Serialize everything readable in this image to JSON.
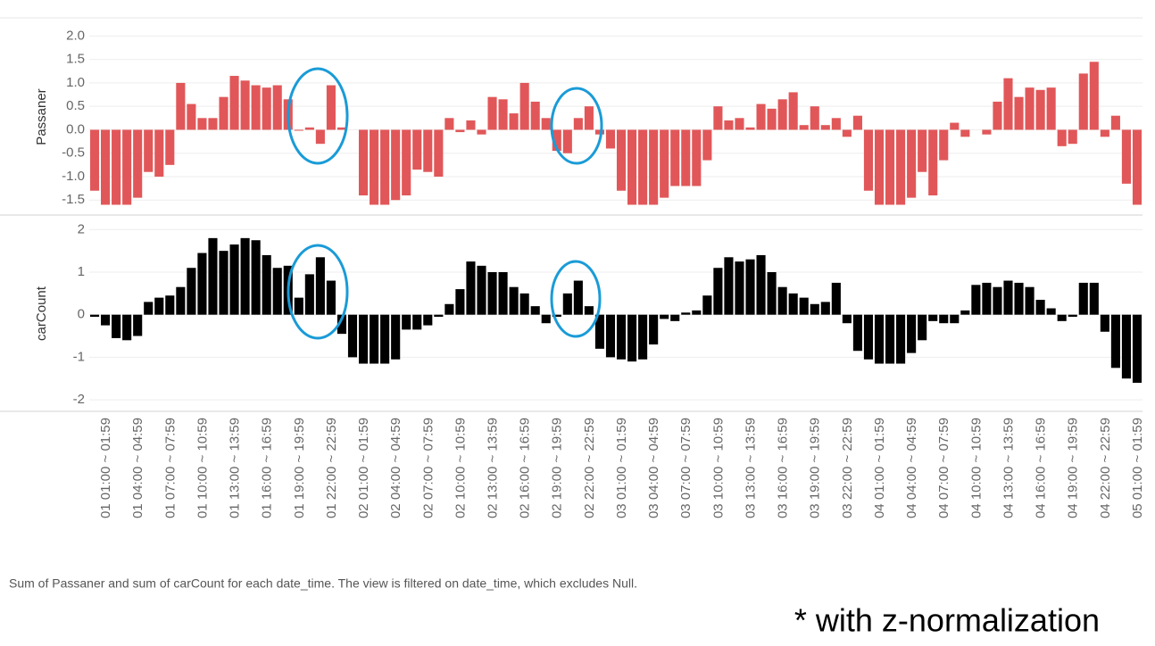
{
  "chart_data": {
    "type": "bar",
    "categories": [
      null,
      "01 01:00 ~ 01:59",
      null,
      null,
      "01 04:00 ~ 04:59",
      null,
      null,
      "01 07:00 ~ 07:59",
      null,
      null,
      "01 10:00 ~ 10:59",
      null,
      null,
      "01 13:00 ~ 13:59",
      null,
      null,
      "01 16:00 ~ 16:59",
      null,
      null,
      "01 19:00 ~ 19:59",
      null,
      null,
      "01 22:00 ~ 22:59",
      null,
      null,
      "02 01:00 ~ 01:59",
      null,
      null,
      "02 04:00 ~ 04:59",
      null,
      null,
      "02 07:00 ~ 07:59",
      null,
      null,
      "02 10:00 ~ 10:59",
      null,
      null,
      "02 13:00 ~ 13:59",
      null,
      null,
      "02 16:00 ~ 16:59",
      null,
      null,
      "02 19:00 ~ 19:59",
      null,
      null,
      "02 22:00 ~ 22:59",
      null,
      null,
      "03 01:00 ~ 01:59",
      null,
      null,
      "03 04:00 ~ 04:59",
      null,
      null,
      "03 07:00 ~ 07:59",
      null,
      null,
      "03 10:00 ~ 10:59",
      null,
      null,
      "03 13:00 ~ 13:59",
      null,
      null,
      "03 16:00 ~ 16:59",
      null,
      null,
      "03 19:00 ~ 19:59",
      null,
      null,
      "03 22:00 ~ 22:59",
      null,
      null,
      "04 01:00 ~ 01:59",
      null,
      null,
      "04 04:00 ~ 04:59",
      null,
      null,
      "04 07:00 ~ 07:59",
      null,
      null,
      "04 10:00 ~ 10:59",
      null,
      null,
      "04 13:00 ~ 13:59",
      null,
      null,
      "04 16:00 ~ 16:59",
      null,
      null,
      "04 19:00 ~ 19:59",
      null,
      null,
      "04 22:00 ~ 22:59",
      null,
      null,
      "05 01:00 ~ 01:59"
    ],
    "series": [
      {
        "name": "Passaner",
        "color": "#e15759",
        "ylim": [
          -1.8,
          2.35
        ],
        "yticks": [
          {
            "value": 2,
            "label": "2.0"
          },
          1.5,
          {
            "value": 1,
            "label": "1.0"
          },
          0.5,
          {
            "value": 0,
            "label": "0.0"
          },
          -0.5,
          {
            "value": -1,
            "label": "-1.0"
          },
          -1.5
        ],
        "values": [
          -1.3,
          -1.6,
          -1.6,
          -1.6,
          -1.45,
          -0.9,
          -1.0,
          -0.75,
          1.0,
          0.55,
          0.25,
          0.25,
          0.7,
          1.15,
          1.05,
          0.95,
          0.9,
          0.95,
          0.65,
          -0.02,
          0.05,
          -0.3,
          0.95,
          0.05,
          0.0,
          -1.4,
          -1.6,
          -1.6,
          -1.5,
          -1.4,
          -0.85,
          -0.9,
          -1.0,
          0.25,
          -0.05,
          0.2,
          -0.1,
          0.7,
          0.65,
          0.35,
          1.0,
          0.6,
          0.25,
          -0.45,
          -0.5,
          0.25,
          0.5,
          -0.1,
          -0.4,
          -1.3,
          -1.6,
          -1.6,
          -1.6,
          -1.45,
          -1.2,
          -1.2,
          -1.2,
          -0.65,
          0.5,
          0.2,
          0.25,
          0.05,
          0.55,
          0.45,
          0.65,
          0.8,
          0.1,
          0.5,
          0.1,
          0.25,
          -0.15,
          0.3,
          -1.3,
          -1.6,
          -1.6,
          -1.6,
          -1.45,
          -0.9,
          -1.4,
          -0.65,
          0.15,
          -0.15,
          0.0,
          -0.1,
          0.6,
          1.1,
          0.7,
          0.9,
          0.85,
          0.9,
          -0.35,
          -0.3,
          1.2,
          1.45,
          -0.15,
          0.3,
          -1.15,
          -1.6
        ]
      },
      {
        "name": "carCount",
        "color": "#000000",
        "ylim": [
          -2.25,
          2.3
        ],
        "yticks": [
          2,
          1,
          0,
          -1,
          -2
        ],
        "values": [
          -0.05,
          -0.25,
          -0.55,
          -0.6,
          -0.5,
          0.3,
          0.4,
          0.45,
          0.65,
          1.1,
          1.45,
          1.8,
          1.5,
          1.65,
          1.8,
          1.75,
          1.4,
          1.1,
          1.15,
          0.4,
          0.95,
          1.35,
          0.8,
          -0.45,
          -1.0,
          -1.15,
          -1.15,
          -1.15,
          -1.05,
          -0.35,
          -0.35,
          -0.25,
          -0.05,
          0.25,
          0.6,
          1.25,
          1.15,
          1.0,
          1.0,
          0.65,
          0.5,
          0.2,
          -0.2,
          -0.05,
          0.5,
          0.8,
          0.2,
          -0.8,
          -1.0,
          -1.05,
          -1.1,
          -1.05,
          -0.7,
          -0.1,
          -0.15,
          0.05,
          0.1,
          0.45,
          1.1,
          1.35,
          1.25,
          1.3,
          1.4,
          1.0,
          0.65,
          0.5,
          0.4,
          0.25,
          0.3,
          0.75,
          -0.2,
          -0.85,
          -1.05,
          -1.15,
          -1.15,
          -1.15,
          -0.9,
          -0.6,
          -0.15,
          -0.2,
          -0.2,
          0.1,
          0.7,
          0.75,
          0.65,
          0.8,
          0.75,
          0.65,
          0.35,
          0.15,
          -0.15,
          -0.05,
          0.75,
          0.75,
          -0.4,
          -1.25,
          -1.5,
          -1.6
        ]
      }
    ],
    "grid": true,
    "caption": "Sum of Passaner and sum of carCount for each date_time. The view is filtered on date_time, which excludes Null.",
    "note": "* with z-normalization"
  }
}
